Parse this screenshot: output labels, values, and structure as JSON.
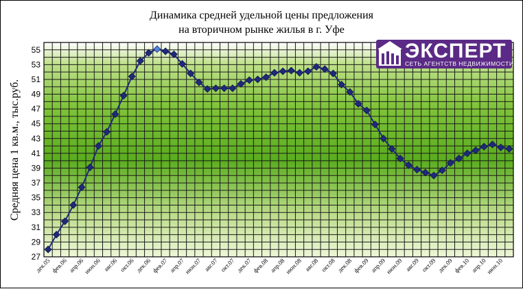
{
  "chart_data": {
    "type": "line",
    "title_line1": "Динамика средней удельной цены предложения",
    "title_line2": "на вторичном рынке жилья в г. Уфе",
    "ylabel": "Средняя цена 1 кв.м., тыс.руб.",
    "xlabel": "",
    "ylim": [
      27,
      56
    ],
    "yticks": [
      27,
      29,
      31,
      33,
      35,
      37,
      39,
      41,
      43,
      45,
      47,
      49,
      51,
      53,
      55
    ],
    "grid": true,
    "legend": "none",
    "colors": {
      "line": "#1f2a78",
      "marker": "#1f2a78",
      "highlight_marker": "#4f87d8",
      "grid": "#1a1a1a"
    },
    "x": [
      "дек.05",
      "янв.06",
      "фев.06",
      "мар.06",
      "апр.06",
      "май.06",
      "июн.06",
      "июл.06",
      "авг.06",
      "сен.06",
      "окт.06",
      "ноя.06",
      "дек.06",
      "янв.07",
      "фев.07",
      "мар.07",
      "апр.07",
      "май.07",
      "июн.07",
      "июл.07",
      "авг.07",
      "сен.07",
      "окт.07",
      "ноя.07",
      "дек.07",
      "янв.08",
      "фев.08",
      "мар.08",
      "апр.08",
      "май.08",
      "июн.08",
      "июл.08",
      "авг.08",
      "сен.08",
      "окт.08",
      "ноя.08",
      "дек.08",
      "янв.09",
      "фев.09",
      "мар.09",
      "апр.09",
      "май.09",
      "июн.09",
      "июл.09",
      "авг.09",
      "сен.09",
      "окт.09",
      "ноя.09",
      "дек.09",
      "янв.10",
      "фев.10",
      "мар.10",
      "апр.10",
      "май.10",
      "июн.10",
      "июл.10"
    ],
    "xtick_labels": [
      "дек.05",
      "фев.06",
      "апр.06",
      "июн.06",
      "авг.06",
      "окт.06",
      "дек.06",
      "фев.07",
      "апр.07",
      "июн.07",
      "авг.07",
      "окт.07",
      "дек.07",
      "фев.08",
      "апр.08",
      "июн.08",
      "авг.08",
      "окт.08",
      "дек.08",
      "фев.09",
      "апр.09",
      "июн.09",
      "авг.09",
      "окт.09",
      "дек.09",
      "фев.10",
      "апр.10",
      "июн.10"
    ],
    "series": [
      {
        "values": [
          28.0,
          30.0,
          31.8,
          34.0,
          36.4,
          39.1,
          42.0,
          43.9,
          46.3,
          48.8,
          51.4,
          53.5,
          54.6,
          55.1,
          54.8,
          54.4,
          53.1,
          51.8,
          50.6,
          49.7,
          49.8,
          49.8,
          49.8,
          50.4,
          50.9,
          51.0,
          51.3,
          51.9,
          52.1,
          52.2,
          51.9,
          52.1,
          52.7,
          52.4,
          51.8,
          50.3,
          49.3,
          47.7,
          46.8,
          44.9,
          43.0,
          41.6,
          40.3,
          39.4,
          38.8,
          38.4,
          38.0,
          38.7,
          39.7,
          40.3,
          41.0,
          41.4,
          41.9,
          42.2,
          41.8,
          41.6
        ],
        "highlight_index": 13
      }
    ]
  },
  "logo": {
    "brand": "ЭКСПЕРТ",
    "tagline": "СЕТЬ АГЕНТСТВ НЕДВИЖИМОСТИ",
    "color": "#5b2a86"
  }
}
